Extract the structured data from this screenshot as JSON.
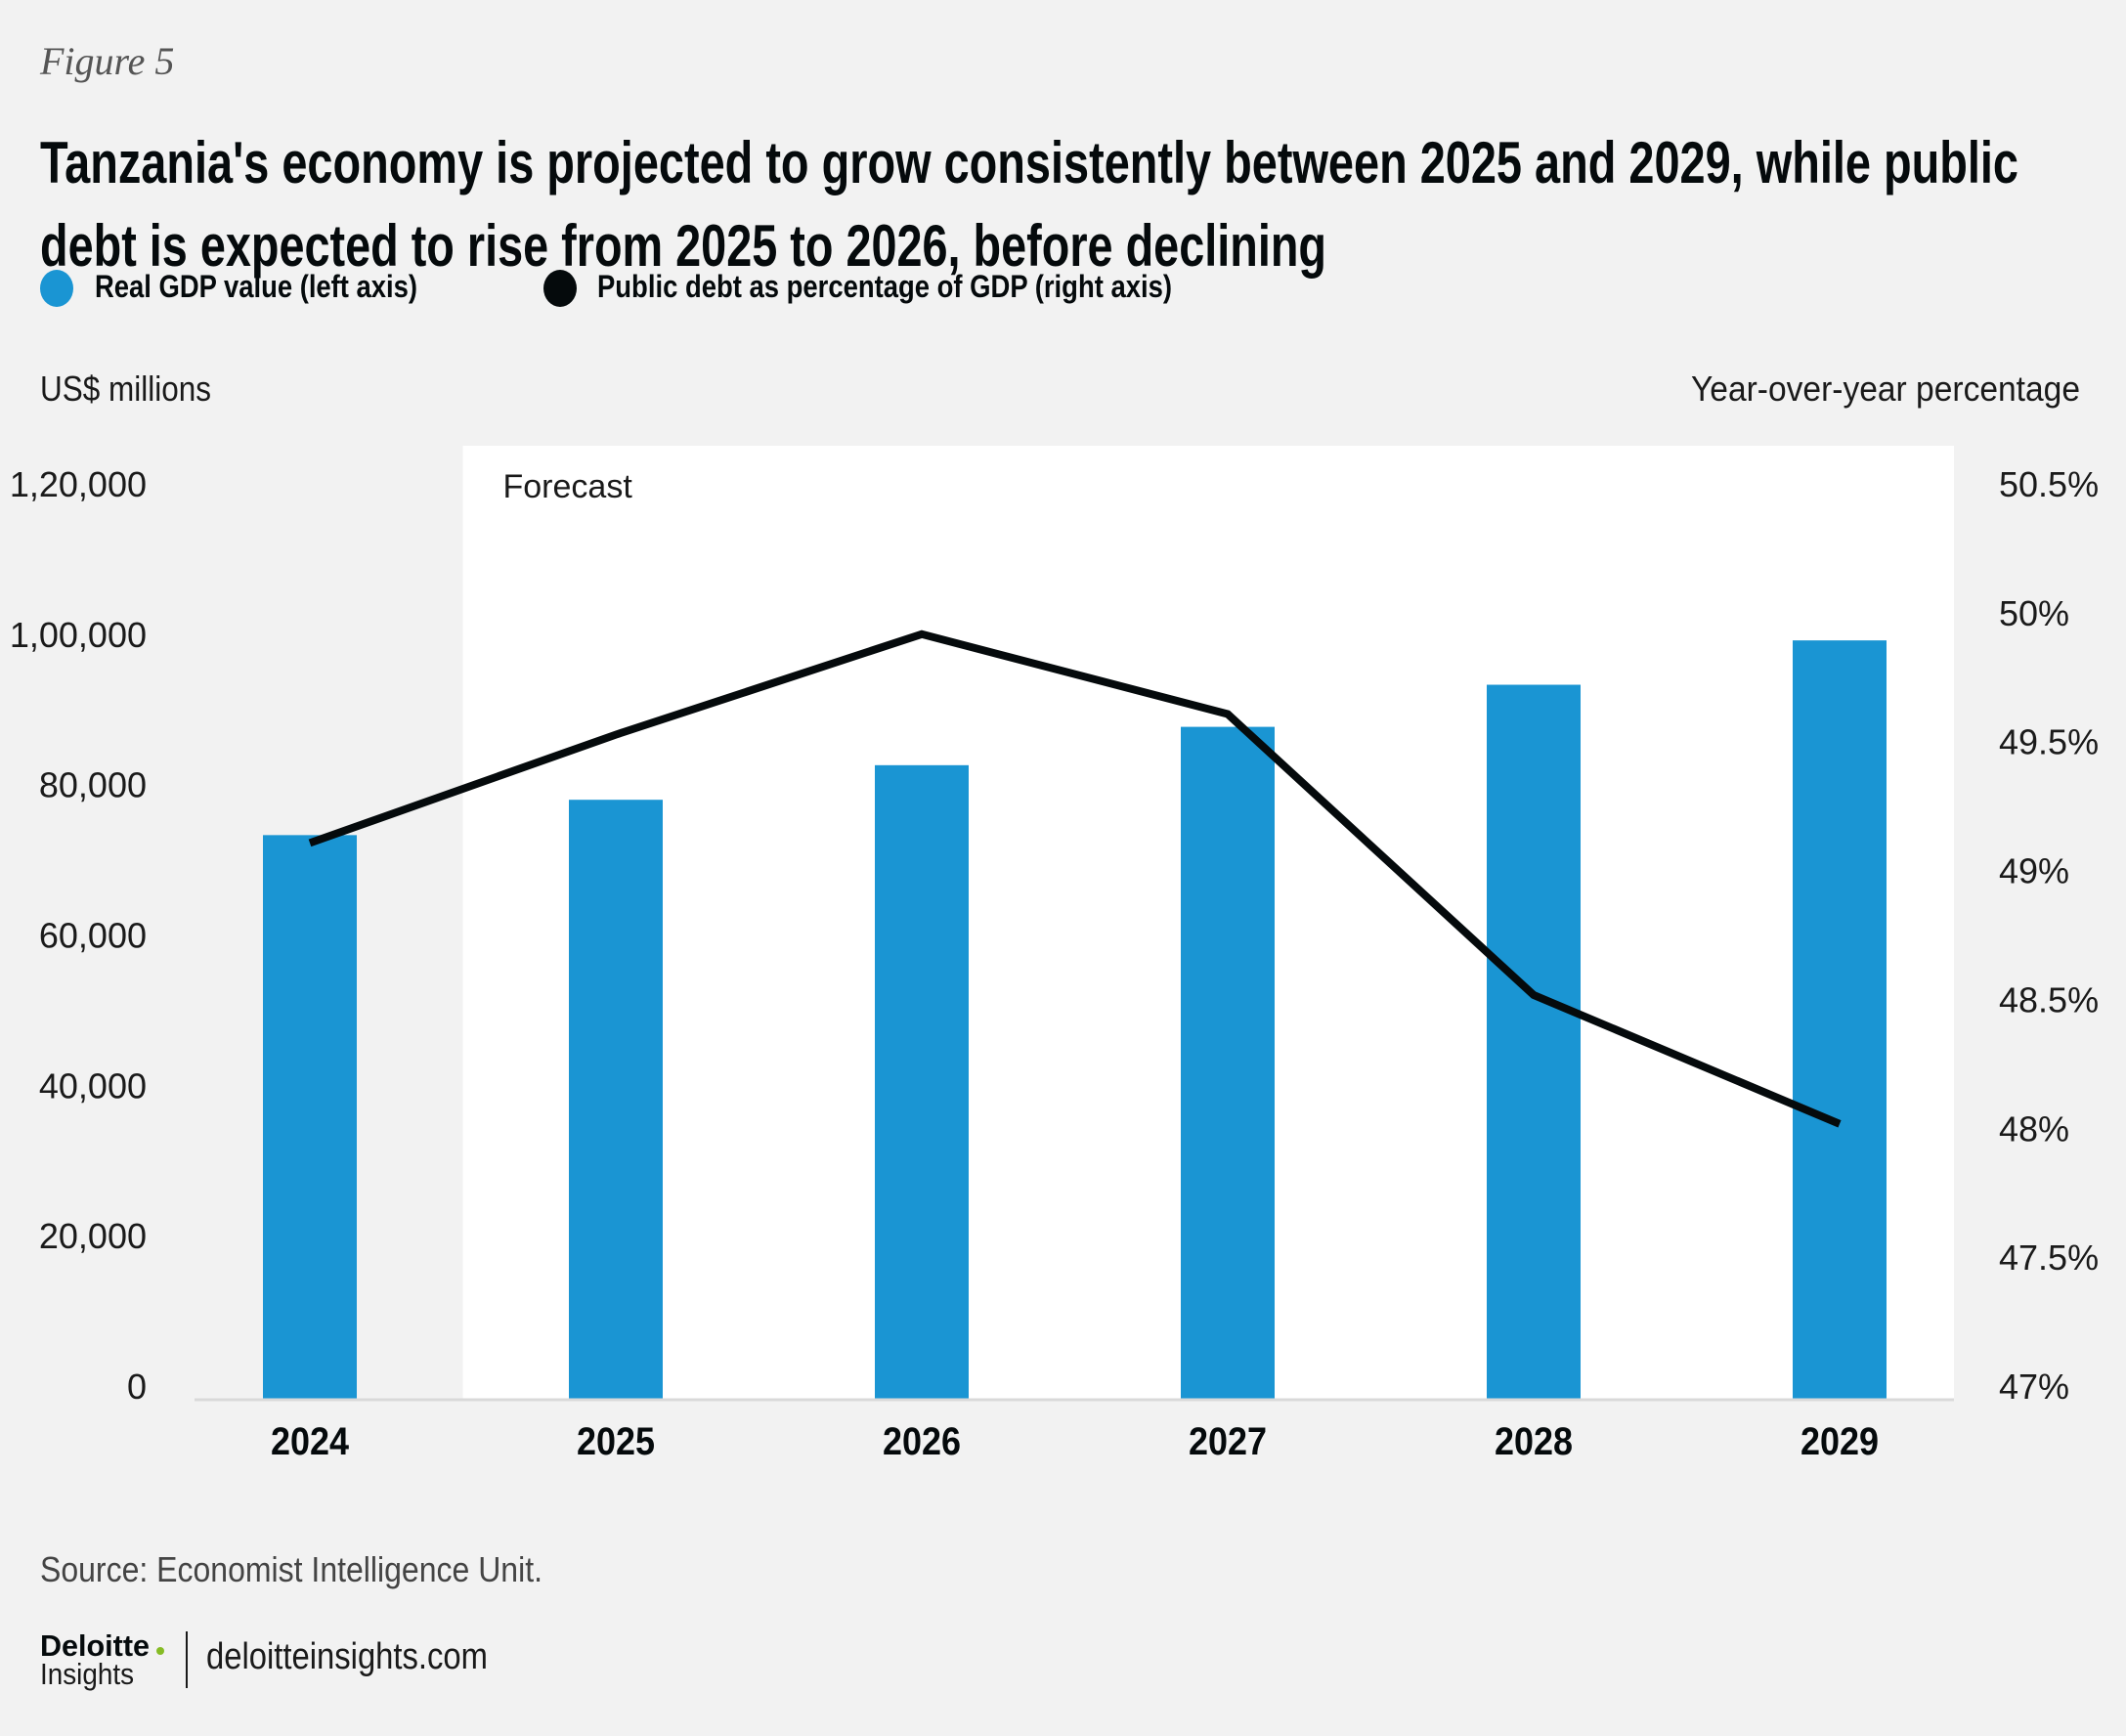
{
  "figure_label": "Figure 5",
  "title_lines": [
    "Tanzania's economy is projected to grow consistently between 2025 and 2029, while public",
    "debt is expected to rise from 2025 to 2026, before declining"
  ],
  "colors": {
    "bar": "#1a95d3",
    "line": "#050a0c",
    "background": "#f2f2f2",
    "forecast_panel": "#ffffff",
    "axis_line": "#d9d9d9",
    "logo_dot": "#86bc25"
  },
  "footer": {
    "source": "Source: Economist Intelligence Unit.",
    "logo_brand": "Deloitte",
    "logo_dot": ".",
    "logo_sub": "Insights",
    "url": "deloitteinsights.com"
  },
  "chart_data": {
    "type": "bar",
    "title": "Tanzania's economy is projected to grow consistently between 2025 and 2029, while public debt is expected to rise from 2025 to 2026, before declining",
    "categories": [
      "2024",
      "2025",
      "2026",
      "2027",
      "2028",
      "2029"
    ],
    "series": [
      {
        "name": "Real GDP value (left axis)",
        "type": "bar",
        "axis": "left",
        "color": "#1a95d3",
        "values": [
          75100,
          79800,
          84400,
          89500,
          95100,
          101000
        ]
      },
      {
        "name": "Public debt as percentage of GDP (right axis)",
        "type": "line",
        "axis": "right",
        "color": "#050a0c",
        "values": [
          49.16,
          49.58,
          49.97,
          49.66,
          48.57,
          48.07
        ]
      }
    ],
    "left_axis": {
      "label": "US$ millions",
      "range": [
        0,
        120000
      ],
      "ticks": [
        0,
        20000,
        40000,
        60000,
        80000,
        100000,
        120000
      ],
      "tick_labels": [
        "0",
        "20,000",
        "40,000",
        "60,000",
        "80,000",
        "1,00,000",
        "1,20,000"
      ]
    },
    "right_axis": {
      "label": "Year-over-year percentage",
      "range": [
        47,
        50.5
      ],
      "ticks": [
        47,
        47.5,
        48,
        48.5,
        49,
        49.5,
        50,
        50.5
      ],
      "tick_labels": [
        "47%",
        "47.5%",
        "48%",
        "48.5%",
        "49%",
        "49.5%",
        "50%",
        "50.5%"
      ]
    },
    "annotation": {
      "text": "Forecast",
      "from_category": "2025",
      "to_category": "2029"
    },
    "legend_position": "top-left",
    "grid": false
  }
}
